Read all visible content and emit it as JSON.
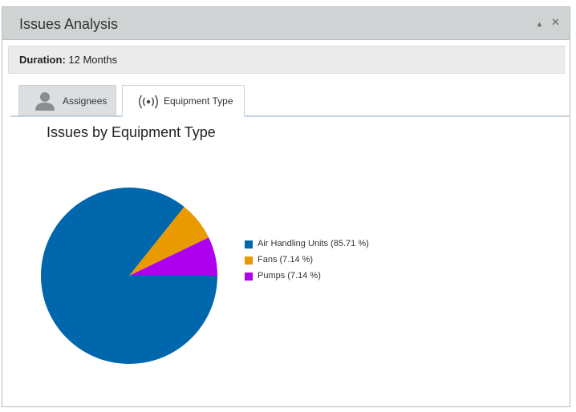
{
  "window": {
    "title": "Issues Analysis",
    "collapse_glyph": "▲",
    "close_glyph": "✕"
  },
  "duration": {
    "label": "Duration:",
    "value": "12 Months"
  },
  "tabs": [
    {
      "label": "Assignees",
      "icon": "person-icon",
      "active": false
    },
    {
      "label": "Equipment Type",
      "icon": "broadcast-signal-icon",
      "active": true
    }
  ],
  "chart_data": {
    "type": "pie",
    "title": "Issues by Equipment Type",
    "legend_position": "right",
    "slices": [
      {
        "label": "Air Handling Units",
        "percent": 85.71,
        "legend_text": "Air Handling Units (85.71 %)",
        "color": "#0067ad"
      },
      {
        "label": "Fans",
        "percent": 7.14,
        "legend_text": "Fans (7.14 %)",
        "color": "#e89a00"
      },
      {
        "label": "Pumps",
        "percent": 7.14,
        "legend_text": "Pumps (7.14 %)",
        "color": "#ad00ef"
      }
    ]
  }
}
